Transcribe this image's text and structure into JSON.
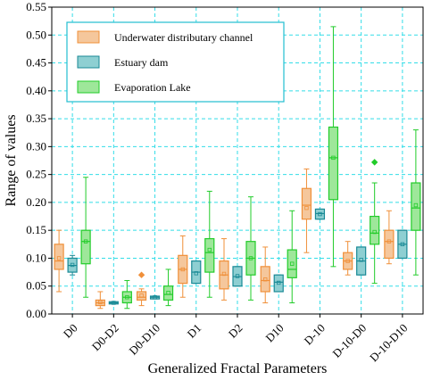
{
  "chart_data": {
    "type": "box",
    "xlabel": "Generalized Fractal Parameters",
    "ylabel": "Range of values",
    "ylim": [
      0,
      0.55
    ],
    "yticks": [
      "0.00",
      "0.05",
      "0.10",
      "0.15",
      "0.20",
      "0.25",
      "0.30",
      "0.35",
      "0.40",
      "0.45",
      "0.50",
      "0.55"
    ],
    "categories": [
      "D0",
      "D0-D2",
      "D0-D10",
      "D1",
      "D2",
      "D10",
      "D-10",
      "D-10-D0",
      "D-10-D10"
    ],
    "grid": true,
    "legend_position": "top-left",
    "series": [
      {
        "name": "Underwater distributary channel",
        "fill": "#f5c79c",
        "stroke": "#f0903a",
        "boxes": [
          {
            "whislo": 0.04,
            "q1": 0.08,
            "med": 0.095,
            "mean": 0.1,
            "q3": 0.125,
            "whishi": 0.15,
            "fliers": []
          },
          {
            "whislo": 0.01,
            "q1": 0.015,
            "med": 0.02,
            "mean": 0.021,
            "q3": 0.025,
            "whishi": 0.04,
            "fliers": []
          },
          {
            "whislo": 0.015,
            "q1": 0.025,
            "med": 0.03,
            "mean": 0.033,
            "q3": 0.04,
            "whishi": 0.045,
            "fliers": [
              0.07
            ]
          },
          {
            "whislo": 0.03,
            "q1": 0.055,
            "med": 0.08,
            "mean": 0.08,
            "q3": 0.105,
            "whishi": 0.14,
            "fliers": []
          },
          {
            "whislo": 0.025,
            "q1": 0.045,
            "med": 0.07,
            "mean": 0.072,
            "q3": 0.095,
            "whishi": 0.135,
            "fliers": []
          },
          {
            "whislo": 0.02,
            "q1": 0.04,
            "med": 0.06,
            "mean": 0.062,
            "q3": 0.085,
            "whishi": 0.12,
            "fliers": []
          },
          {
            "whislo": 0.11,
            "q1": 0.17,
            "med": 0.195,
            "mean": 0.19,
            "q3": 0.225,
            "whishi": 0.26,
            "fliers": []
          },
          {
            "whislo": 0.07,
            "q1": 0.08,
            "med": 0.095,
            "mean": 0.095,
            "q3": 0.11,
            "whishi": 0.13,
            "fliers": []
          },
          {
            "whislo": 0.09,
            "q1": 0.1,
            "med": 0.13,
            "mean": 0.13,
            "q3": 0.15,
            "whishi": 0.185,
            "fliers": []
          }
        ]
      },
      {
        "name": "Estuary dam",
        "fill": "#8ecfd2",
        "stroke": "#1a8a96",
        "boxes": [
          {
            "whislo": 0.07,
            "q1": 0.075,
            "med": 0.087,
            "mean": 0.088,
            "q3": 0.1,
            "whishi": 0.105,
            "fliers": []
          },
          {
            "whislo": 0.018,
            "q1": 0.018,
            "med": 0.02,
            "mean": 0.02,
            "q3": 0.022,
            "whishi": 0.022,
            "fliers": []
          },
          {
            "whislo": 0.027,
            "q1": 0.027,
            "med": 0.03,
            "mean": 0.03,
            "q3": 0.032,
            "whishi": 0.032,
            "fliers": []
          },
          {
            "whislo": 0.055,
            "q1": 0.055,
            "med": 0.075,
            "mean": 0.073,
            "q3": 0.095,
            "whishi": 0.095,
            "fliers": []
          },
          {
            "whislo": 0.05,
            "q1": 0.05,
            "med": 0.067,
            "mean": 0.068,
            "q3": 0.085,
            "whishi": 0.085,
            "fliers": []
          },
          {
            "whislo": 0.04,
            "q1": 0.04,
            "med": 0.057,
            "mean": 0.056,
            "q3": 0.07,
            "whishi": 0.07,
            "fliers": []
          },
          {
            "whislo": 0.17,
            "q1": 0.17,
            "med": 0.18,
            "mean": 0.179,
            "q3": 0.188,
            "whishi": 0.188,
            "fliers": []
          },
          {
            "whislo": 0.07,
            "q1": 0.07,
            "med": 0.095,
            "mean": 0.097,
            "q3": 0.12,
            "whishi": 0.12,
            "fliers": []
          },
          {
            "whislo": 0.1,
            "q1": 0.1,
            "med": 0.125,
            "mean": 0.125,
            "q3": 0.15,
            "whishi": 0.15,
            "fliers": []
          }
        ]
      },
      {
        "name": "Evaporation Lake",
        "fill": "#9ee79a",
        "stroke": "#22cc2a",
        "boxes": [
          {
            "whislo": 0.03,
            "q1": 0.09,
            "med": 0.13,
            "mean": 0.13,
            "q3": 0.15,
            "whishi": 0.245,
            "fliers": []
          },
          {
            "whislo": 0.01,
            "q1": 0.02,
            "med": 0.03,
            "mean": 0.03,
            "q3": 0.04,
            "whishi": 0.06,
            "fliers": []
          },
          {
            "whislo": 0.015,
            "q1": 0.025,
            "med": 0.035,
            "mean": 0.038,
            "q3": 0.05,
            "whishi": 0.08,
            "fliers": []
          },
          {
            "whislo": 0.03,
            "q1": 0.075,
            "med": 0.11,
            "mean": 0.115,
            "q3": 0.135,
            "whishi": 0.22,
            "fliers": []
          },
          {
            "whislo": 0.025,
            "q1": 0.07,
            "med": 0.1,
            "mean": 0.1,
            "q3": 0.13,
            "whishi": 0.21,
            "fliers": []
          },
          {
            "whislo": 0.02,
            "q1": 0.065,
            "med": 0.08,
            "mean": 0.09,
            "q3": 0.115,
            "whishi": 0.185,
            "fliers": []
          },
          {
            "whislo": 0.085,
            "q1": 0.205,
            "med": 0.28,
            "mean": 0.28,
            "q3": 0.335,
            "whishi": 0.515,
            "fliers": []
          },
          {
            "whislo": 0.055,
            "q1": 0.125,
            "med": 0.145,
            "mean": 0.147,
            "q3": 0.175,
            "whishi": 0.235,
            "fliers": [
              0.272
            ]
          },
          {
            "whislo": 0.07,
            "q1": 0.15,
            "med": 0.19,
            "mean": 0.195,
            "q3": 0.235,
            "whishi": 0.33,
            "fliers": []
          }
        ]
      }
    ]
  }
}
